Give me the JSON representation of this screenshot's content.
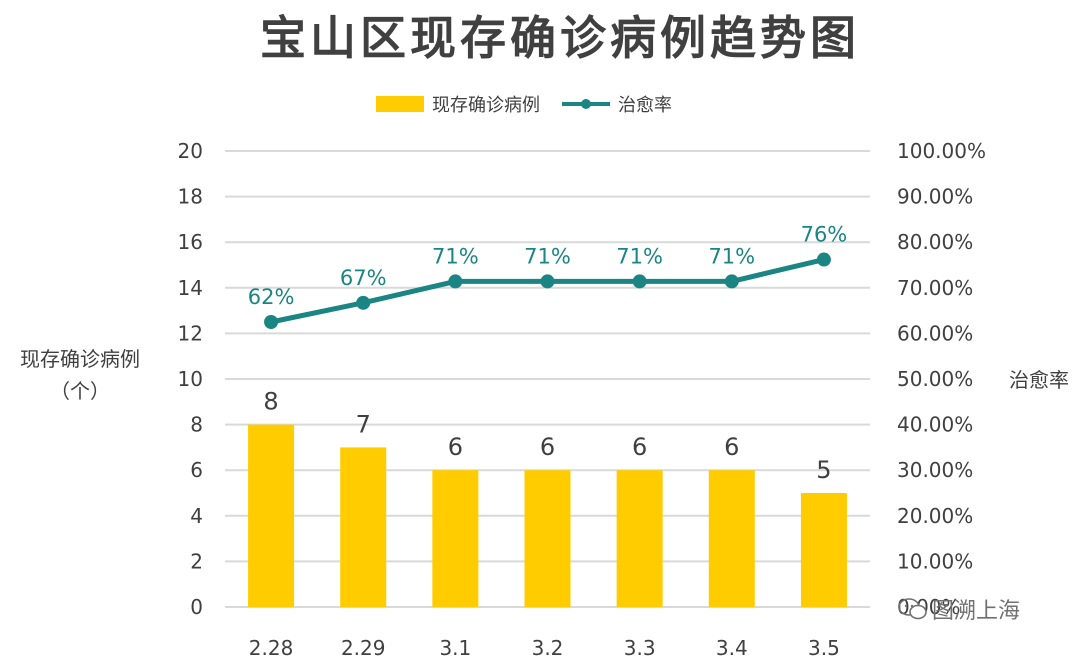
{
  "chart_data": {
    "type": "bar",
    "title": "宝山区现存确诊病例趋势图",
    "categories": [
      "2.28",
      "2.29",
      "3.1",
      "3.2",
      "3.3",
      "3.4",
      "3.5"
    ],
    "series": [
      {
        "name": "现存确诊病例",
        "type": "bar",
        "axis": "left",
        "color": "#FFCC00",
        "values": [
          8,
          7,
          6,
          6,
          6,
          6,
          5
        ],
        "labels": [
          "8",
          "7",
          "6",
          "6",
          "6",
          "6",
          "5"
        ]
      },
      {
        "name": "治愈率",
        "type": "line",
        "axis": "right",
        "color": "#1A8582",
        "values": [
          62.5,
          66.7,
          71.4,
          71.4,
          71.4,
          71.4,
          76.2
        ],
        "labels": [
          "62%",
          "67%",
          "71%",
          "71%",
          "71%",
          "71%",
          "76%"
        ]
      }
    ],
    "ylabel": "现存确诊病例\n（个）",
    "ylabel_right": "治愈率",
    "ylim": [
      0,
      20
    ],
    "ylim_right": [
      0,
      100
    ],
    "yticks": [
      "0",
      "2",
      "4",
      "6",
      "8",
      "10",
      "12",
      "14",
      "16",
      "18",
      "20"
    ],
    "yticks_right": [
      "0.00%",
      "10.00%",
      "20.00%",
      "30.00%",
      "40.00%",
      "50.00%",
      "60.00%",
      "70.00%",
      "80.00%",
      "90.00%",
      "100.00%"
    ],
    "grid": true,
    "legend_position": "top"
  },
  "watermark": "图溯上海",
  "colors": {
    "bar": "#FFCC00",
    "line": "#1A8582",
    "grid": "#D9D9D9",
    "text": "#404040"
  }
}
